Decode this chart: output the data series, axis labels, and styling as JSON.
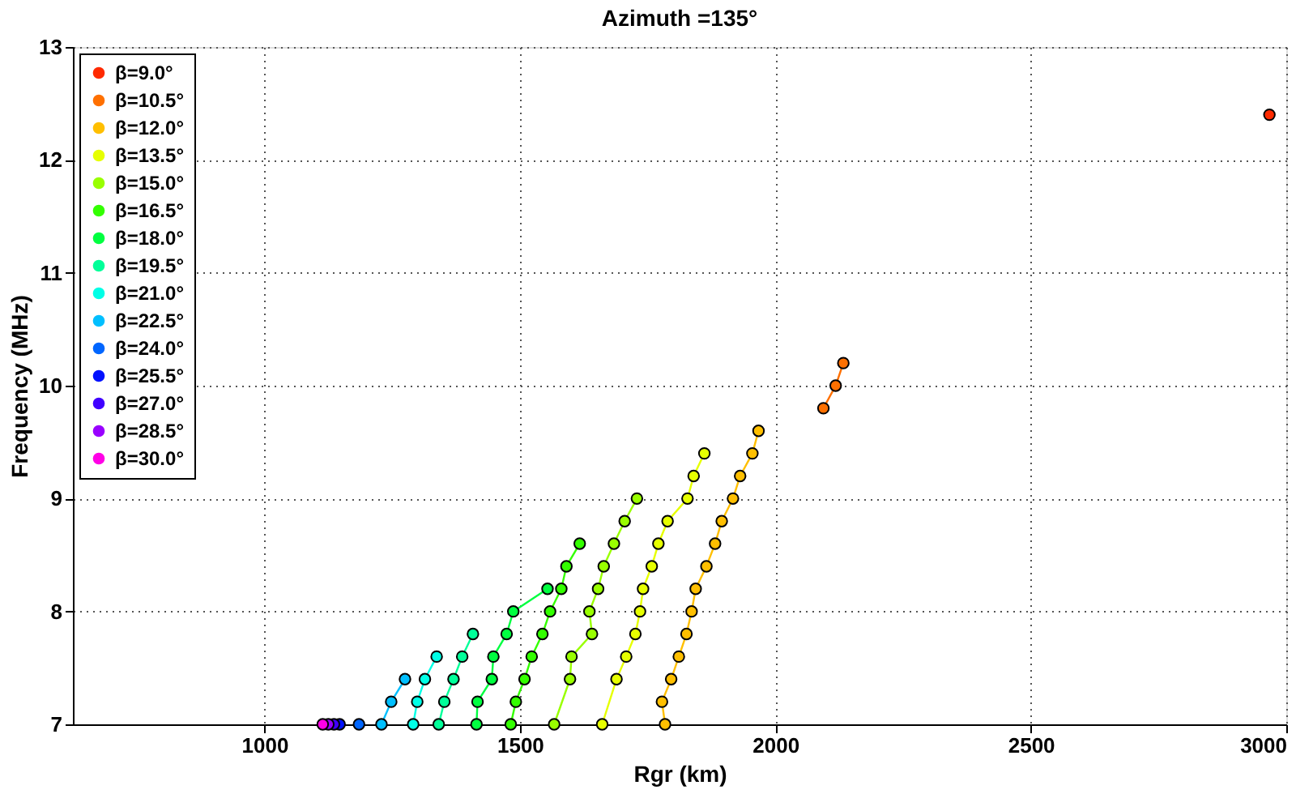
{
  "chart_data": {
    "type": "line",
    "title": "Azimuth =135°",
    "xlabel": "Rgr (km)",
    "ylabel": "Frequency (MHz)",
    "xlim": [
      625,
      3000
    ],
    "xticks": [
      1000,
      1500,
      2000,
      2500,
      3000
    ],
    "ylim": [
      7,
      13
    ],
    "yticks": [
      7,
      8,
      9,
      10,
      11,
      12,
      13
    ],
    "grid": true,
    "legend": "top left",
    "marker": "circle",
    "line_style": "solid",
    "series": [
      {
        "name": "β=9.0°",
        "color": "#ff2a00",
        "x": [
          2967
        ],
        "values": [
          12.4
        ]
      },
      {
        "name": "β=10.5°",
        "color": "#ff7000",
        "x": [
          2094,
          2118,
          2133
        ],
        "values": [
          9.8,
          10.0,
          10.2
        ]
      },
      {
        "name": "β=12.0°",
        "color": "#ffbf00",
        "x": [
          1784,
          1778,
          1796,
          1811,
          1826,
          1836,
          1844,
          1865,
          1882,
          1895,
          1917,
          1931,
          1955,
          1967
        ],
        "values": [
          7.0,
          7.2,
          7.4,
          7.6,
          7.8,
          8.0,
          8.2,
          8.4,
          8.6,
          8.8,
          9.0,
          9.2,
          9.4,
          9.6
        ]
      },
      {
        "name": "β=13.5°",
        "color": "#e6ff00",
        "x": [
          1661,
          1689,
          1708,
          1726,
          1735,
          1741,
          1758,
          1771,
          1789,
          1828,
          1840,
          1861
        ],
        "values": [
          7.0,
          7.4,
          7.6,
          7.8,
          8.0,
          8.2,
          8.4,
          8.6,
          8.8,
          9.0,
          9.2,
          9.4
        ]
      },
      {
        "name": "β=15.0°",
        "color": "#99ff00",
        "x": [
          1567,
          1598,
          1601,
          1641,
          1636,
          1653,
          1664,
          1684,
          1705,
          1729
        ],
        "values": [
          7.0,
          7.4,
          7.6,
          7.8,
          8.0,
          8.2,
          8.4,
          8.6,
          8.8,
          9.0
        ]
      },
      {
        "name": "β=16.5°",
        "color": "#33ff00",
        "x": [
          1482,
          1492,
          1509,
          1523,
          1544,
          1559,
          1581,
          1591,
          1617
        ],
        "values": [
          7.0,
          7.2,
          7.4,
          7.6,
          7.8,
          8.0,
          8.2,
          8.4,
          8.6
        ]
      },
      {
        "name": "β=18.0°",
        "color": "#00ff40",
        "x": [
          1415,
          1417,
          1445,
          1448,
          1474,
          1487,
          1554
        ],
        "values": [
          7.0,
          7.2,
          7.4,
          7.6,
          7.8,
          8.0,
          8.2
        ]
      },
      {
        "name": "β=19.5°",
        "color": "#00ff99",
        "x": [
          1341,
          1352,
          1370,
          1387,
          1408
        ],
        "values": [
          7.0,
          7.2,
          7.4,
          7.6,
          7.8
        ]
      },
      {
        "name": "β=21.0°",
        "color": "#00ffe6",
        "x": [
          1291,
          1299,
          1314,
          1337
        ],
        "values": [
          7.0,
          7.2,
          7.4,
          7.6
        ]
      },
      {
        "name": "β=22.5°",
        "color": "#00bfff",
        "x": [
          1229,
          1248,
          1275
        ],
        "values": [
          7.0,
          7.2,
          7.4
        ]
      },
      {
        "name": "β=24.0°",
        "color": "#0066ff",
        "x": [
          1185
        ],
        "values": [
          7.0
        ]
      },
      {
        "name": "β=25.5°",
        "color": "#0011ff",
        "x": [
          1147
        ],
        "values": [
          7.0
        ]
      },
      {
        "name": "β=27.0°",
        "color": "#4000ff",
        "x": [
          1136
        ],
        "values": [
          7.0
        ]
      },
      {
        "name": "β=28.5°",
        "color": "#9900ff",
        "x": [
          1125
        ],
        "values": [
          7.0
        ]
      },
      {
        "name": "β=30.0°",
        "color": "#ff00e6",
        "x": [
          1114
        ],
        "values": [
          7.0
        ]
      }
    ]
  }
}
